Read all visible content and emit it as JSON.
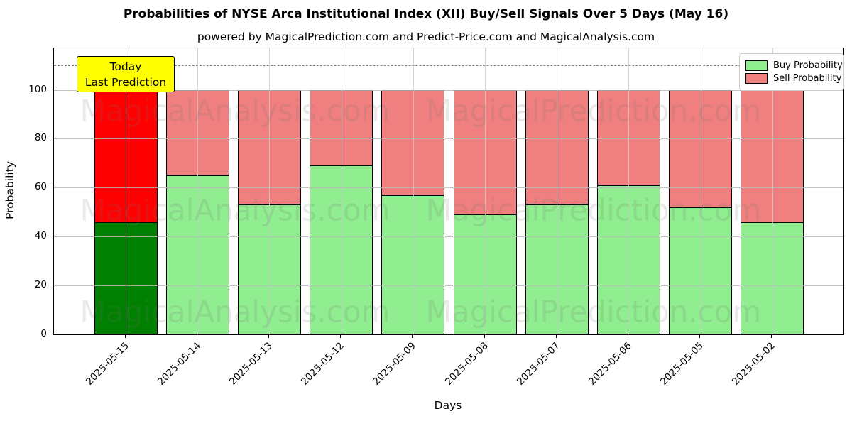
{
  "title": "Probabilities of NYSE Arca Institutional Index (XII) Buy/Sell Signals Over 5 Days (May 16)",
  "subtitle": "powered by MagicalPrediction.com and Predict-Price.com and MagicalAnalysis.com",
  "annotation": {
    "line1": "Today",
    "line2": "Last Prediction",
    "bg_color": "#ffff00"
  },
  "legend": [
    {
      "label": "Buy Probability",
      "color": "#90ee90"
    },
    {
      "label": "Sell Probability",
      "color": "#f08080"
    }
  ],
  "watermark": {
    "left": "MagicalAnalysis.com",
    "right": "MagicalPrediction.com"
  },
  "chart_data": {
    "type": "bar",
    "stacked": true,
    "title": "Probabilities of NYSE Arca Institutional Index (XII) Buy/Sell Signals Over 5 Days (May 16)",
    "xlabel": "Days",
    "ylabel": "Probability",
    "categories": [
      "2025-05-15",
      "2025-05-14",
      "2025-05-13",
      "2025-05-12",
      "2025-05-09",
      "2025-05-08",
      "2025-05-07",
      "2025-05-06",
      "2025-05-05",
      "2025-05-02"
    ],
    "series": [
      {
        "name": "Buy Probability",
        "values": [
          46,
          65,
          53,
          69,
          57,
          49,
          53,
          61,
          52,
          46
        ],
        "color": "#90ee90",
        "today_color": "#008000"
      },
      {
        "name": "Sell Probability",
        "values": [
          54,
          35,
          47,
          31,
          43,
          51,
          47,
          39,
          48,
          54
        ],
        "color": "#f08080",
        "today_color": "#ff0000"
      }
    ],
    "today_index": 0,
    "yticks": [
      0,
      20,
      40,
      60,
      80,
      100
    ],
    "ylim": [
      0,
      117
    ],
    "dashed_line_y": 110,
    "grid": true,
    "legend_position": "upper right",
    "grid_color": "#b0b0b0"
  }
}
